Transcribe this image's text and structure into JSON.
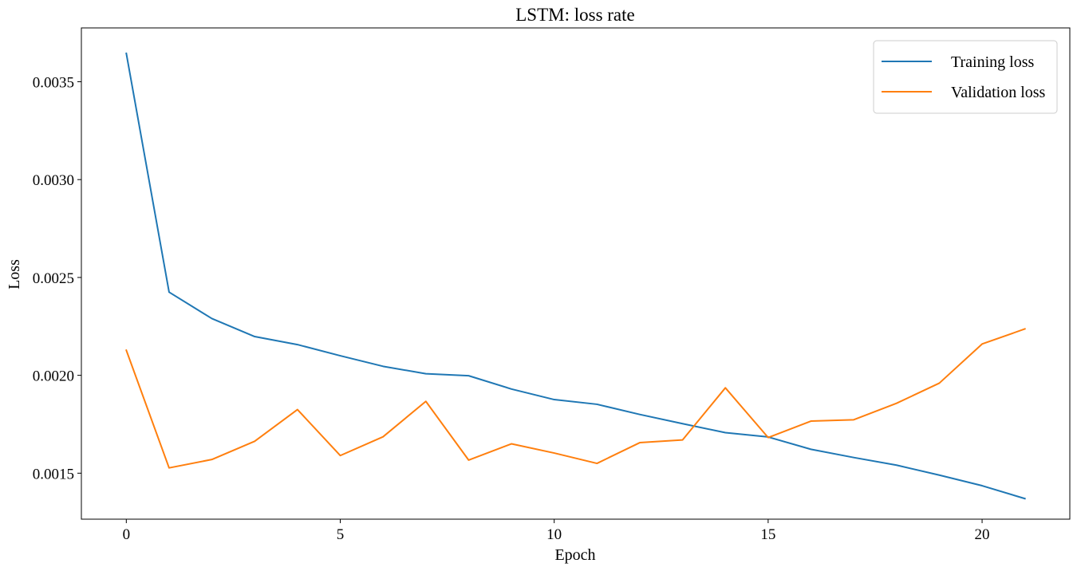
{
  "chart_data": {
    "type": "line",
    "title": "LSTM: loss rate",
    "xlabel": "Epoch",
    "ylabel": "Loss",
    "x": [
      0,
      1,
      2,
      3,
      4,
      5,
      6,
      7,
      8,
      9,
      10,
      11,
      12,
      13,
      14,
      15,
      16,
      17,
      18,
      19,
      20,
      21
    ],
    "xlim": [
      -1.05,
      22.05
    ],
    "ylim": [
      0.001265,
      0.003775
    ],
    "xticks": [
      0,
      5,
      10,
      15,
      20
    ],
    "xtick_labels": [
      "0",
      "5",
      "10",
      "15",
      "20"
    ],
    "yticks": [
      0.0015,
      0.002,
      0.0025,
      0.003,
      0.0035
    ],
    "ytick_labels": [
      "0.0015",
      "0.0020",
      "0.0025",
      "0.0030",
      "0.0035"
    ],
    "grid": false,
    "legend_position": "top-right",
    "series": [
      {
        "name": "Training loss",
        "color": "#1f77b4",
        "values": [
          0.003645,
          0.002425,
          0.00229,
          0.002198,
          0.002157,
          0.0021,
          0.002046,
          0.002008,
          0.001998,
          0.00193,
          0.001876,
          0.001852,
          0.0018,
          0.001753,
          0.001707,
          0.001685,
          0.001622,
          0.00158,
          0.001541,
          0.00149,
          0.001436,
          0.00137
        ]
      },
      {
        "name": "Validation loss",
        "color": "#ff7f0e",
        "values": [
          0.002128,
          0.001527,
          0.00157,
          0.001663,
          0.001825,
          0.00159,
          0.001686,
          0.001867,
          0.001567,
          0.00165,
          0.001603,
          0.00155,
          0.001656,
          0.00167,
          0.001936,
          0.001682,
          0.001766,
          0.001773,
          0.001857,
          0.00196,
          0.00216,
          0.002237
        ]
      }
    ]
  }
}
